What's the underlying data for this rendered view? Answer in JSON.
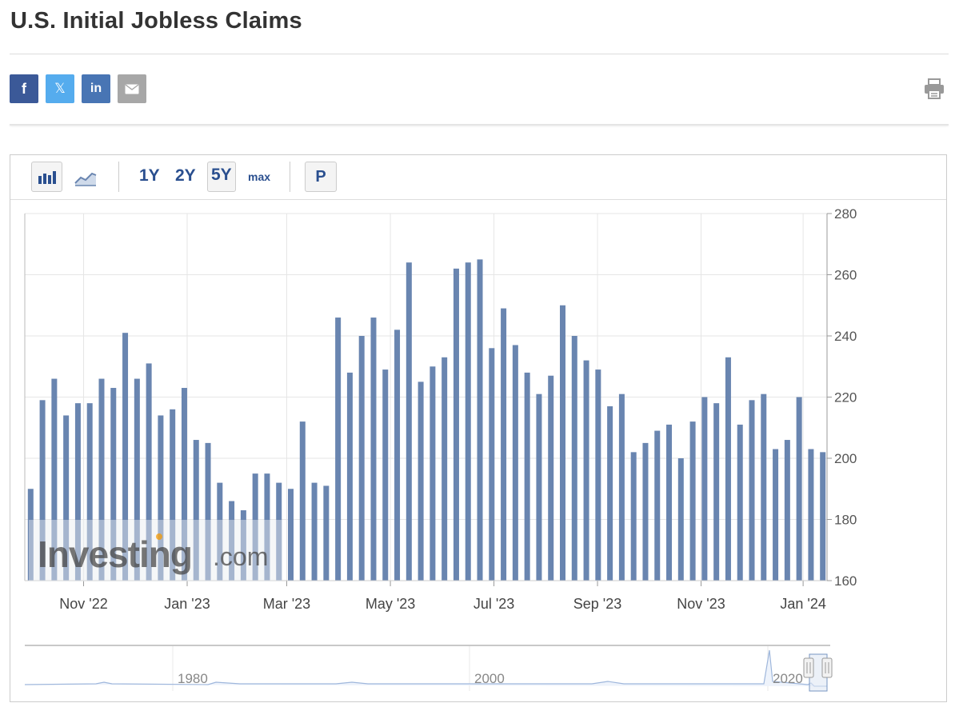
{
  "page": {
    "title": "U.S. Initial Jobless Claims"
  },
  "share": {
    "facebook": "f",
    "twitter": "𝕏",
    "linkedin": "in",
    "email_icon": "envelope-icon",
    "print_icon": "printer-icon"
  },
  "toolbar": {
    "bar_chart_icon": "bar-chart-icon",
    "line_chart_icon": "line-chart-icon",
    "range_1y": "1Y",
    "range_2y": "2Y",
    "range_5y": "5Y",
    "range_max": "max",
    "selected_range": "5Y",
    "p_button": "P"
  },
  "watermark": {
    "brand": "Investing",
    "suffix": ".com"
  },
  "colors": {
    "bar": "#6985b0",
    "accent": "#2a4f8f",
    "logo_dot": "#f5a623"
  },
  "chart_data": {
    "type": "bar",
    "title": "U.S. Initial Jobless Claims",
    "ylim": [
      160,
      280
    ],
    "y_ticks": [
      "280",
      "260",
      "240",
      "220",
      "200",
      "180",
      "160"
    ],
    "x_tick_labels": [
      "Nov '22",
      "Jan '23",
      "Mar '23",
      "May '23",
      "Jul '23",
      "Sep '23",
      "Nov '23",
      "Jan '24"
    ],
    "values": [
      190,
      219,
      226,
      214,
      218,
      218,
      226,
      223,
      241,
      226,
      231,
      214,
      216,
      223,
      206,
      205,
      192,
      186,
      183,
      195,
      195,
      192,
      190,
      212,
      192,
      191,
      246,
      228,
      240,
      246,
      229,
      242,
      264,
      225,
      230,
      233,
      262,
      264,
      265,
      236,
      249,
      237,
      228,
      221,
      227,
      250,
      240,
      232,
      229,
      217,
      221,
      202,
      205,
      209,
      211,
      200,
      212,
      220,
      218,
      233,
      211,
      219,
      221,
      203,
      206,
      220,
      203,
      202
    ],
    "grid": true,
    "navigator": {
      "labels": [
        "1980",
        "2000",
        "2020"
      ]
    }
  }
}
